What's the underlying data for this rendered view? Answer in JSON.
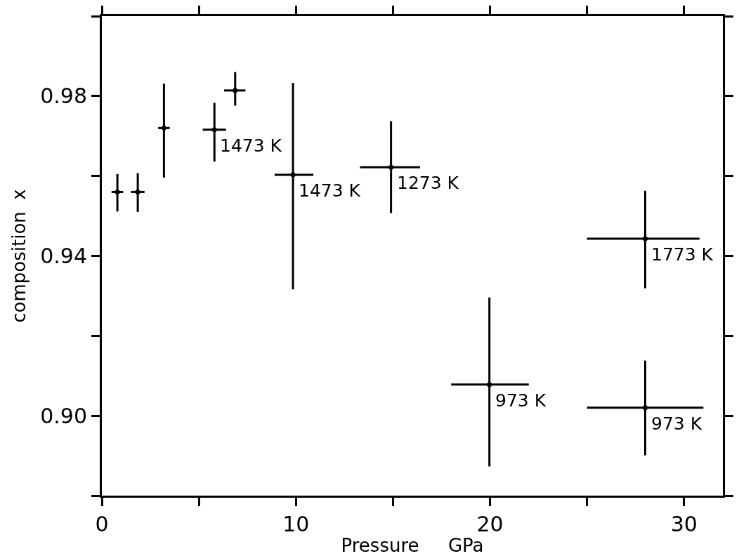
{
  "chart_data": {
    "type": "scatter",
    "xlabel": "Pressure     GPa",
    "ylabel": "composition  x",
    "x": [
      0.8,
      1.85,
      3.2,
      5.8,
      6.87,
      9.85,
      14.9,
      28.0,
      19.97,
      28.0
    ],
    "series": [
      {
        "color": "#000000",
        "values": [
          0.956,
          0.956,
          0.972,
          0.9716,
          0.9814,
          0.9603,
          0.9622,
          0.9443,
          0.9078,
          0.902
        ],
        "errors": [
          [
            0.9511,
            0.9605
          ],
          [
            0.951,
            0.9607
          ],
          [
            0.9596,
            0.9831
          ],
          [
            0.9636,
            0.9783
          ],
          [
            0.9776,
            0.986
          ],
          [
            0.9316,
            0.9833
          ],
          [
            0.9507,
            0.9737
          ],
          [
            0.9319,
            0.9563
          ],
          [
            0.8873,
            0.9296
          ],
          [
            0.8901,
            0.9138
          ]
        ],
        "xerrors": [
          [
            0.5,
            1.1
          ],
          [
            1.5,
            2.2
          ],
          [
            2.9,
            3.5
          ],
          [
            5.2,
            6.4
          ],
          [
            6.3,
            7.4
          ],
          [
            8.9,
            10.9
          ],
          [
            13.3,
            16.4
          ],
          [
            25.0,
            30.8
          ],
          [
            18.0,
            22.0
          ],
          [
            25.0,
            31.0
          ]
        ]
      }
    ],
    "annotations": [
      {
        "text": "1473 K",
        "x": 5.8,
        "y": 0.9716
      },
      {
        "text": "1473 K",
        "x": 9.85,
        "y": 0.9603
      },
      {
        "text": "1273 K",
        "x": 14.9,
        "y": 0.9622
      },
      {
        "text": "1773 K",
        "x": 28.0,
        "y": 0.9443
      },
      {
        "text": "973 K",
        "x": 19.97,
        "y": 0.9078
      },
      {
        "text": "973 K",
        "x": 28.0,
        "y": 0.902
      }
    ],
    "xlim": [
      0,
      32
    ],
    "ylim": [
      0.88,
      1.0
    ],
    "xticks": [
      0,
      {
        "value": 5,
        "label": null
      },
      10,
      {
        "value": 15,
        "label": null
      },
      20,
      {
        "value": 25,
        "label": null
      },
      30
    ],
    "yticks": [
      {
        "value": 0.88,
        "label": null
      },
      {
        "value": 0.9,
        "label": "0.90"
      },
      {
        "value": 0.92,
        "label": null
      },
      {
        "value": 0.94,
        "label": "0.94"
      },
      {
        "value": 0.96,
        "label": null
      },
      {
        "value": 0.98,
        "label": "0.98"
      },
      {
        "value": 1.0,
        "label": null
      }
    ]
  }
}
